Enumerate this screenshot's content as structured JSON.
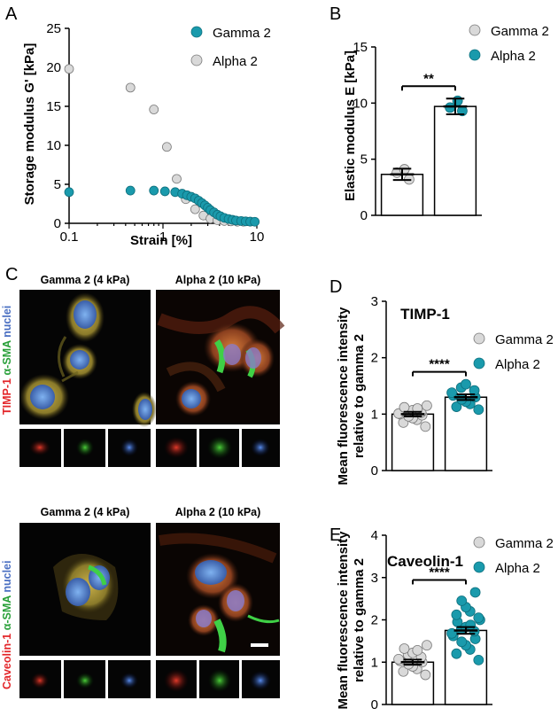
{
  "panels": {
    "A": {
      "label": "A"
    },
    "B": {
      "label": "B"
    },
    "C": {
      "label": "C"
    },
    "D": {
      "label": "D"
    },
    "E": {
      "label": "E"
    }
  },
  "micrographs": {
    "col_left": "Gamma 2 (4 kPa)",
    "col_right": "Alpha 2 (10 kPa)",
    "row1_stain": {
      "red": "TIMP-1",
      "green": "α-SMA",
      "blue": "nuclei"
    },
    "row2_stain": {
      "red": "Caveolin-1",
      "green": "α-SMA",
      "blue": "nuclei"
    },
    "colors": {
      "red": "#e3262a",
      "green": "#2aa03a",
      "blue": "#4a6fc2"
    }
  },
  "colors": {
    "gamma": "#d9d9d9",
    "alpha": "#1a9aac",
    "gamma_edge": "#7a7a7a",
    "alpha_edge": "#0e6f7d"
  },
  "chart_data": [
    {
      "id": "A",
      "type": "scatter",
      "xlabel": "Strain [%]",
      "ylabel": "Storage modulus G' [kPa]",
      "xscale": "log",
      "xlim": [
        0.1,
        10
      ],
      "ylim": [
        0,
        25
      ],
      "xticks": [
        "0.1",
        "1",
        "10"
      ],
      "yticks": [
        "0",
        "5",
        "10",
        "15",
        "20",
        "25"
      ],
      "legend": "top-right",
      "series": [
        {
          "name": "Gamma 2",
          "color": "#1a9aac",
          "x": [
            0.1,
            0.45,
            0.8,
            1.05,
            1.35,
            1.6,
            1.8,
            2.0,
            2.2,
            2.4,
            2.6,
            2.8,
            3.0,
            3.2,
            3.5,
            3.8,
            4.1,
            4.5,
            5.0,
            5.5,
            6.0,
            6.8,
            7.6,
            8.5,
            9.5
          ],
          "y": [
            4.0,
            4.2,
            4.2,
            4.1,
            4.0,
            3.8,
            3.6,
            3.4,
            3.2,
            2.9,
            2.6,
            2.3,
            2.0,
            1.7,
            1.4,
            1.1,
            0.9,
            0.7,
            0.55,
            0.45,
            0.35,
            0.3,
            0.25,
            0.22,
            0.2
          ]
        },
        {
          "name": "Alpha 2",
          "color": "#d9d9d9",
          "x": [
            0.1,
            0.45,
            0.8,
            1.1,
            1.4,
            1.75,
            2.2,
            2.7,
            3.2,
            3.8,
            4.5,
            5.3,
            6.2,
            7.2,
            8.5
          ],
          "y": [
            19.8,
            17.4,
            14.6,
            9.8,
            5.7,
            3.1,
            1.8,
            1.0,
            0.6,
            0.4,
            0.3,
            0.25,
            0.2,
            0.2,
            0.2
          ]
        }
      ]
    },
    {
      "id": "B",
      "type": "bar",
      "ylabel": "Elastic modulus E [kPa]",
      "ylim": [
        0,
        15
      ],
      "yticks": [
        "0",
        "5",
        "10",
        "15"
      ],
      "legend": "top-right",
      "significance": "**",
      "series": [
        {
          "name": "Gamma 2",
          "mean": 3.65,
          "sem": 0.5,
          "color": "#d9d9d9",
          "points": [
            3.2,
            3.8,
            4.1
          ]
        },
        {
          "name": "Alpha 2",
          "mean": 9.7,
          "sem": 0.7,
          "color": "#1a9aac",
          "points": [
            9.3,
            9.6,
            10.2
          ]
        }
      ]
    },
    {
      "id": "D",
      "type": "bar",
      "title": "TIMP-1",
      "ylabel": "Mean fluorescence intensity relative to gamma 2",
      "ylim": [
        0,
        3
      ],
      "yticks": [
        "0",
        "1",
        "2",
        "3"
      ],
      "legend": "top-right",
      "significance": "****",
      "series": [
        {
          "name": "Gamma 2",
          "mean": 1.0,
          "sem": 0.04,
          "color": "#d9d9d9",
          "points": [
            0.78,
            0.85,
            0.9,
            0.93,
            0.96,
            0.98,
            1.0,
            1.01,
            1.03,
            1.05,
            1.07,
            1.1,
            1.12,
            1.15
          ]
        },
        {
          "name": "Alpha 2",
          "mean": 1.3,
          "sem": 0.05,
          "color": "#1a9aac",
          "points": [
            1.08,
            1.13,
            1.18,
            1.22,
            1.26,
            1.3,
            1.33,
            1.38,
            1.42,
            1.47,
            1.53
          ]
        }
      ]
    },
    {
      "id": "E",
      "type": "bar",
      "title": "Caveolin-1",
      "ylabel": "Mean fluorescence intensity relative to gamma 2",
      "ylim": [
        0,
        4
      ],
      "yticks": [
        "0",
        "1",
        "2",
        "3",
        "4"
      ],
      "legend": "top-right",
      "significance": "****",
      "series": [
        {
          "name": "Gamma 2",
          "mean": 1.0,
          "sem": 0.06,
          "color": "#d9d9d9",
          "points": [
            0.7,
            0.78,
            0.84,
            0.9,
            0.95,
            1.0,
            1.03,
            1.07,
            1.12,
            1.18,
            1.22,
            1.28,
            1.32,
            1.4
          ]
        },
        {
          "name": "Alpha 2",
          "mean": 1.75,
          "sem": 0.08,
          "color": "#1a9aac",
          "points": [
            1.05,
            1.2,
            1.3,
            1.4,
            1.48,
            1.55,
            1.62,
            1.68,
            1.73,
            1.78,
            1.83,
            1.88,
            1.95,
            2.0,
            2.05,
            2.12,
            2.2,
            2.3,
            2.45,
            2.65
          ]
        }
      ]
    }
  ]
}
